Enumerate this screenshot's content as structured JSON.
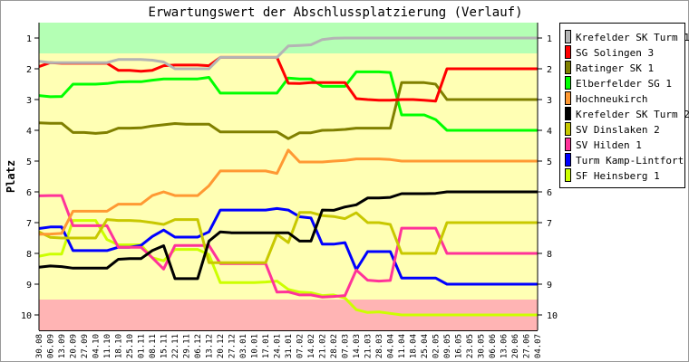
{
  "chart_data": {
    "type": "line",
    "title": "Erwartungswert der Abschlussplatzierung (Verlauf)",
    "xlabel": "",
    "ylabel": "Platz",
    "ylim": [
      10.5,
      0.5
    ],
    "yticks": [
      "1",
      "2",
      "3",
      "4",
      "5",
      "6",
      "7",
      "8",
      "9",
      "10"
    ],
    "y_inverted": true,
    "grid": false,
    "legend_position": "right",
    "bands": [
      {
        "from": 0.5,
        "to": 1.5,
        "color": "#b4ffb4"
      },
      {
        "from": 1.5,
        "to": 9.5,
        "color": "#ffffb4"
      },
      {
        "from": 9.5,
        "to": 10.5,
        "color": "#ffb4b4"
      }
    ],
    "categories": [
      "30.08",
      "06.09",
      "13.09",
      "20.09",
      "27.09",
      "04.10",
      "11.10",
      "18.10",
      "25.10",
      "01.11",
      "08.11",
      "15.11",
      "22.11",
      "29.11",
      "06.12",
      "13.12",
      "20.12",
      "27.12",
      "03.01",
      "10.01",
      "17.01",
      "24.01",
      "31.01",
      "07.02",
      "14.02",
      "21.02",
      "28.02",
      "07.03",
      "14.03",
      "21.03",
      "28.03",
      "04.04",
      "11.04",
      "18.04",
      "25.04",
      "02.05",
      "09.05",
      "16.05",
      "23.05",
      "30.05",
      "06.06",
      "13.06",
      "20.06",
      "27.06",
      "04.07"
    ],
    "series": [
      {
        "name": "Krefelder SK Turm 1",
        "color": "#b4b4b4",
        "values": [
          1.76,
          1.8,
          1.8,
          1.8,
          1.8,
          1.8,
          1.8,
          1.7,
          1.7,
          1.7,
          1.72,
          1.78,
          2.0,
          2.0,
          2.0,
          2.0,
          1.63,
          1.63,
          1.63,
          1.63,
          1.63,
          1.63,
          1.26,
          1.24,
          1.22,
          1.05,
          1.01,
          1.0,
          1.0,
          1.0,
          1,
          1,
          1,
          1,
          1,
          1,
          1,
          1,
          1,
          1,
          1,
          1,
          1,
          1,
          1
        ]
      },
      {
        "name": "SG Solingen 3",
        "color": "#ff0000",
        "values": [
          1.93,
          1.8,
          1.82,
          1.82,
          1.82,
          1.82,
          1.82,
          2.05,
          2.05,
          2.08,
          2.05,
          1.9,
          1.88,
          1.88,
          1.88,
          1.9,
          1.63,
          1.63,
          1.63,
          1.63,
          1.63,
          1.63,
          2.47,
          2.48,
          2.45,
          2.45,
          2.45,
          2.45,
          2.97,
          3.0,
          3.02,
          3.02,
          3.0,
          3.0,
          3.02,
          3.05,
          2,
          2,
          2,
          2,
          2,
          2,
          2,
          2,
          2
        ]
      },
      {
        "name": "Ratinger SK 1",
        "color": "#808000",
        "values": [
          3.76,
          3.77,
          3.77,
          4.07,
          4.07,
          4.1,
          4.07,
          3.93,
          3.93,
          3.92,
          3.86,
          3.82,
          3.78,
          3.8,
          3.8,
          3.8,
          4.05,
          4.05,
          4.05,
          4.05,
          4.05,
          4.05,
          4.27,
          4.08,
          4.08,
          4.0,
          3.99,
          3.97,
          3.93,
          3.93,
          3.93,
          3.93,
          2.45,
          2.45,
          2.45,
          2.5,
          3,
          3,
          3,
          3,
          3,
          3,
          3,
          3,
          3
        ]
      },
      {
        "name": "Elberfelder SG 1",
        "color": "#00ff00",
        "values": [
          2.87,
          2.91,
          2.9,
          2.5,
          2.5,
          2.5,
          2.48,
          2.43,
          2.42,
          2.42,
          2.37,
          2.33,
          2.33,
          2.33,
          2.33,
          2.28,
          2.79,
          2.79,
          2.79,
          2.79,
          2.79,
          2.79,
          2.3,
          2.33,
          2.33,
          2.57,
          2.57,
          2.57,
          2.1,
          2.1,
          2.1,
          2.12,
          3.5,
          3.5,
          3.5,
          3.65,
          4,
          4,
          4,
          4,
          4,
          4,
          4,
          4,
          4
        ]
      },
      {
        "name": "Hochneukirch",
        "color": "#ff9933",
        "values": [
          7.38,
          7.37,
          7.35,
          6.63,
          6.63,
          6.63,
          6.63,
          6.4,
          6.4,
          6.4,
          6.12,
          6.0,
          6.12,
          6.12,
          6.12,
          5.8,
          5.32,
          5.32,
          5.32,
          5.32,
          5.32,
          5.4,
          4.64,
          5.03,
          5.03,
          5.03,
          5.0,
          4.98,
          4.93,
          4.93,
          4.93,
          4.95,
          5,
          5,
          5,
          5,
          5,
          5,
          5,
          5,
          5,
          5,
          5,
          5,
          5
        ]
      },
      {
        "name": "Krefelder SK Turm 2",
        "color": "#000000",
        "values": [
          8.45,
          8.41,
          8.43,
          8.48,
          8.48,
          8.48,
          8.48,
          8.19,
          8.17,
          8.17,
          7.91,
          7.75,
          8.82,
          8.82,
          8.82,
          7.6,
          7.3,
          7.33,
          7.33,
          7.33,
          7.33,
          7.33,
          7.33,
          7.6,
          7.6,
          6.59,
          6.6,
          6.49,
          6.42,
          6.2,
          6.2,
          6.18,
          6.06,
          6.06,
          6.06,
          6.05,
          6,
          6,
          6,
          6,
          6,
          6,
          6,
          6,
          6
        ]
      },
      {
        "name": "SV Dinslaken 2",
        "color": "#c8c800",
        "values": [
          7.3,
          7.48,
          7.5,
          7.5,
          7.5,
          7.5,
          6.9,
          6.93,
          6.93,
          6.95,
          7.0,
          7.06,
          6.9,
          6.9,
          6.9,
          8.3,
          8.3,
          8.3,
          8.3,
          8.3,
          8.3,
          7.38,
          7.65,
          6.67,
          6.67,
          6.77,
          6.8,
          6.87,
          6.68,
          7.0,
          7.0,
          7.06,
          8,
          8,
          8,
          8,
          7,
          7,
          7,
          7,
          7,
          7,
          7,
          7,
          7
        ]
      },
      {
        "name": "SV Hilden 1",
        "color": "#ff3399",
        "values": [
          6.13,
          6.12,
          6.12,
          7.1,
          7.1,
          7.1,
          7.1,
          7.8,
          7.8,
          7.8,
          8.14,
          8.51,
          7.74,
          7.74,
          7.74,
          7.74,
          8.33,
          8.33,
          8.33,
          8.33,
          8.33,
          9.26,
          9.25,
          9.35,
          9.35,
          9.42,
          9.4,
          9.37,
          8.54,
          8.87,
          8.9,
          8.88,
          7.18,
          7.18,
          7.18,
          7.18,
          8,
          8,
          8,
          8,
          8,
          8,
          8,
          8,
          8
        ]
      },
      {
        "name": "Turm Kamp-Lintfort",
        "color": "#0000ff",
        "values": [
          7.19,
          7.14,
          7.14,
          7.91,
          7.91,
          7.91,
          7.91,
          7.8,
          7.8,
          7.74,
          7.45,
          7.24,
          7.47,
          7.47,
          7.47,
          7.3,
          6.59,
          6.59,
          6.59,
          6.59,
          6.59,
          6.54,
          6.59,
          6.81,
          6.85,
          7.7,
          7.7,
          7.65,
          8.53,
          7.94,
          7.94,
          7.94,
          8.8,
          8.8,
          8.8,
          8.8,
          9,
          9,
          9,
          9,
          9,
          9,
          9,
          9,
          9
        ]
      },
      {
        "name": "SF Heinsberg 1",
        "color": "#ccff00",
        "values": [
          8.09,
          8.02,
          8.02,
          6.93,
          6.93,
          6.93,
          7.55,
          7.72,
          7.72,
          7.72,
          8.14,
          8.24,
          7.87,
          7.87,
          7.87,
          8.04,
          8.95,
          8.95,
          8.95,
          8.95,
          8.93,
          8.9,
          9.17,
          9.26,
          9.28,
          9.37,
          9.35,
          9.45,
          9.83,
          9.92,
          9.9,
          9.95,
          10,
          10,
          10,
          10,
          10,
          10,
          10,
          10,
          10,
          10,
          10,
          10,
          10
        ]
      }
    ]
  }
}
